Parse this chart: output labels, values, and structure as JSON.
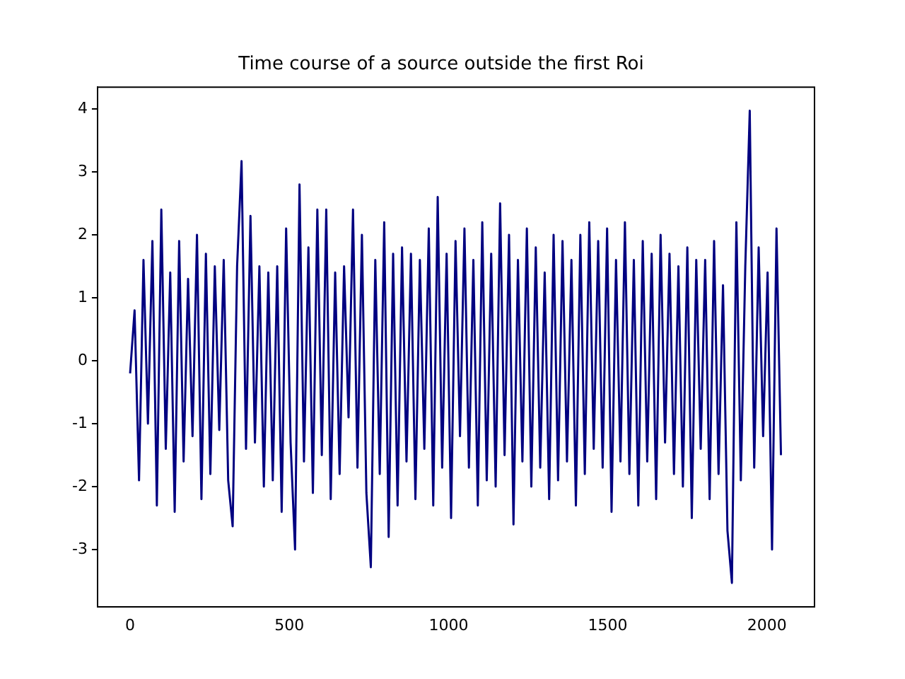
{
  "chart_data": {
    "type": "line",
    "title": "Time course of a source outside the first Roi",
    "x": [
      0,
      14,
      28,
      42,
      56,
      70,
      84,
      98,
      112,
      126,
      140,
      154,
      168,
      182,
      196,
      210,
      224,
      238,
      252,
      266,
      280,
      294,
      308,
      322,
      336,
      350,
      364,
      378,
      392,
      406,
      420,
      434,
      448,
      462,
      476,
      490,
      504,
      518,
      532,
      546,
      560,
      574,
      588,
      602,
      616,
      630,
      644,
      658,
      672,
      686,
      700,
      714,
      728,
      742,
      756,
      770,
      784,
      798,
      812,
      826,
      840,
      854,
      868,
      882,
      896,
      910,
      924,
      938,
      952,
      966,
      980,
      994,
      1008,
      1022,
      1036,
      1050,
      1064,
      1078,
      1092,
      1106,
      1120,
      1134,
      1148,
      1162,
      1176,
      1190,
      1204,
      1218,
      1232,
      1246,
      1260,
      1274,
      1288,
      1302,
      1316,
      1330,
      1344,
      1358,
      1372,
      1386,
      1400,
      1414,
      1428,
      1442,
      1456,
      1470,
      1484,
      1498,
      1512,
      1526,
      1540,
      1554,
      1568,
      1582,
      1596,
      1610,
      1624,
      1638,
      1652,
      1666,
      1680,
      1694,
      1708,
      1722,
      1736,
      1750,
      1764,
      1778,
      1792,
      1806,
      1820,
      1834,
      1848,
      1862,
      1876,
      1890,
      1904,
      1918,
      1932,
      1946,
      1960,
      1974,
      1988,
      2002,
      2016,
      2030,
      2044
    ],
    "series": [
      {
        "color": "#000080",
        "values": [
          -0.2,
          0.8,
          -1.9,
          1.6,
          -1.0,
          1.9,
          -2.3,
          2.4,
          -1.4,
          1.4,
          -2.4,
          1.9,
          -1.6,
          1.3,
          -1.2,
          2.0,
          -2.2,
          1.7,
          -1.8,
          1.5,
          -1.1,
          1.6,
          -1.9,
          -2.63,
          1.5,
          3.17,
          -1.4,
          2.3,
          -1.3,
          1.5,
          -2.0,
          1.4,
          -1.9,
          1.5,
          -2.4,
          2.1,
          -1.3,
          -3.0,
          2.8,
          -1.6,
          1.8,
          -2.1,
          2.4,
          -1.5,
          2.4,
          -2.2,
          1.4,
          -1.8,
          1.5,
          -0.9,
          2.4,
          -1.7,
          2.0,
          -2.1,
          -3.28,
          1.6,
          -1.8,
          2.2,
          -2.8,
          1.7,
          -2.3,
          1.8,
          -1.6,
          1.7,
          -2.2,
          1.6,
          -1.4,
          2.1,
          -2.3,
          2.6,
          -1.7,
          1.7,
          -2.5,
          1.9,
          -1.2,
          2.1,
          -1.7,
          1.6,
          -2.3,
          2.2,
          -1.9,
          1.7,
          -2.0,
          2.5,
          -1.5,
          2.0,
          -2.6,
          1.6,
          -1.6,
          2.1,
          -2.0,
          1.8,
          -1.7,
          1.4,
          -2.2,
          2.0,
          -1.9,
          1.9,
          -1.6,
          1.6,
          -2.3,
          2.0,
          -1.8,
          2.2,
          -1.4,
          1.9,
          -1.7,
          2.1,
          -2.4,
          1.6,
          -1.6,
          2.2,
          -1.8,
          1.6,
          -2.3,
          1.9,
          -1.6,
          1.7,
          -2.2,
          2.0,
          -1.3,
          1.7,
          -1.8,
          1.5,
          -2.0,
          1.8,
          -2.5,
          1.6,
          -1.4,
          1.6,
          -2.2,
          1.9,
          -1.8,
          1.2,
          -2.7,
          -3.53,
          2.2,
          -1.9,
          1.5,
          3.97,
          -1.7,
          1.8,
          -1.2,
          1.4,
          -3.0,
          2.1,
          -1.5
        ]
      }
    ],
    "xlim": [
      -102.35,
      2149.35
    ],
    "xticks": [
      0,
      500,
      1000,
      1500,
      2000
    ],
    "ylim": [
      -3.905,
      4.345
    ],
    "yticks": [
      -3,
      -2,
      -1,
      0,
      1,
      2,
      3,
      4
    ],
    "grid": false,
    "legend": false,
    "marker": "none",
    "line_style": "solid"
  }
}
